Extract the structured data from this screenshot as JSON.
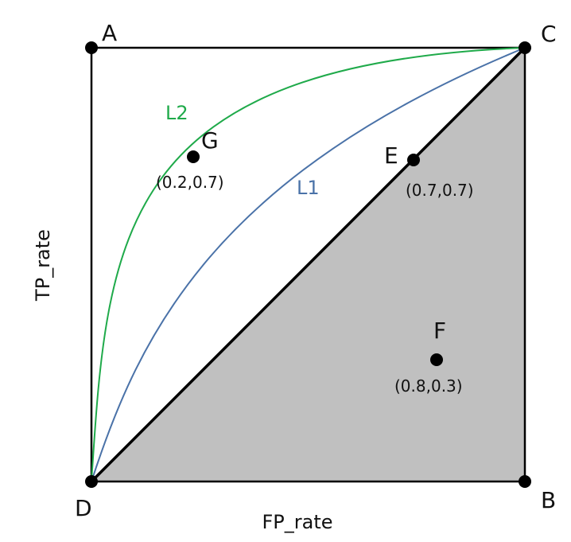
{
  "diagram": {
    "axes": {
      "x_label": "FP_rate",
      "y_label": "TP_rate"
    },
    "corners": {
      "A": "A",
      "B": "B",
      "C": "C",
      "D": "D"
    },
    "points": {
      "G": {
        "label": "G",
        "coord_text": "(0.2,0.7)",
        "x": 0.2,
        "y": 0.7
      },
      "E": {
        "label": "E",
        "coord_text": "(0.7,0.7)",
        "x": 0.7,
        "y": 0.7
      },
      "F": {
        "label": "F",
        "coord_text": "(0.8,0.3)",
        "x": 0.8,
        "y": 0.3
      }
    },
    "curves": {
      "L1": {
        "label": "L1",
        "color": "#4a72a8"
      },
      "L2": {
        "label": "L2",
        "color": "#1faa4a"
      }
    },
    "colors": {
      "shaded_region": "#c0c0c0",
      "frame": "#000000",
      "diagonal": "#000000"
    }
  }
}
